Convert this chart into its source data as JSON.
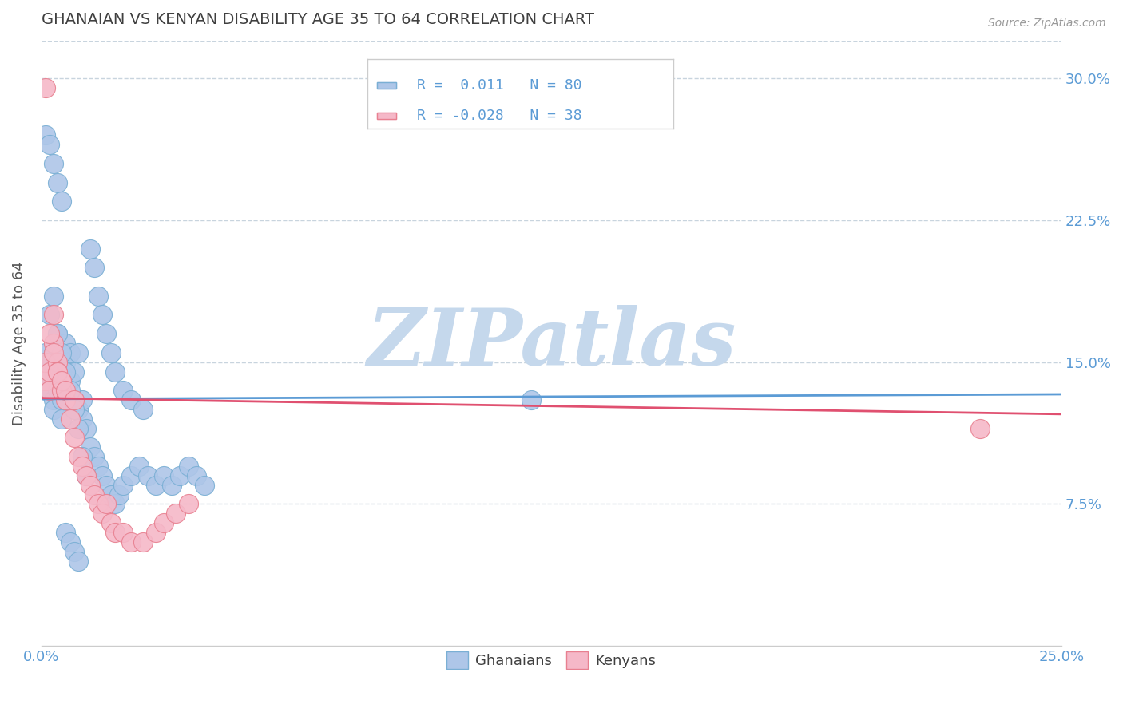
{
  "title": "GHANAIAN VS KENYAN DISABILITY AGE 35 TO 64 CORRELATION CHART",
  "source_text": "Source: ZipAtlas.com",
  "ylabel": "Disability Age 35 to 64",
  "xlim": [
    0.0,
    0.25
  ],
  "ylim": [
    0.0,
    0.32
  ],
  "xticks": [
    0.0,
    0.25
  ],
  "xticklabels": [
    "0.0%",
    "25.0%"
  ],
  "yticks": [
    0.075,
    0.15,
    0.225,
    0.3
  ],
  "yticklabels": [
    "7.5%",
    "15.0%",
    "22.5%",
    "30.0%"
  ],
  "ghanaian_color": "#aec6e8",
  "kenyan_color": "#f5b8c8",
  "ghanaian_edge_color": "#7aafd4",
  "kenyan_edge_color": "#e88090",
  "ghanaian_line_color": "#5b9bd5",
  "kenyan_line_color": "#e05070",
  "R_ghanaian": 0.011,
  "N_ghanaian": 80,
  "R_kenyan": -0.028,
  "N_kenyan": 38,
  "legend_ghanaians": "Ghanaians",
  "legend_kenyans": "Kenyans",
  "watermark": "ZIPatlas",
  "watermark_color": "#c5d8ec",
  "title_color": "#404040",
  "axis_label_color": "#555555",
  "tick_color": "#5b9bd5",
  "grid_color": "#c8d4de",
  "legend_R_color": "#5b9bd5",
  "ghanaian_x": [
    0.001,
    0.001,
    0.001,
    0.001,
    0.001,
    0.002,
    0.002,
    0.002,
    0.002,
    0.003,
    0.003,
    0.003,
    0.003,
    0.004,
    0.004,
    0.004,
    0.005,
    0.005,
    0.005,
    0.006,
    0.006,
    0.006,
    0.007,
    0.007,
    0.008,
    0.008,
    0.009,
    0.009,
    0.01,
    0.01,
    0.011,
    0.012,
    0.013,
    0.014,
    0.015,
    0.016,
    0.017,
    0.018,
    0.019,
    0.02,
    0.022,
    0.024,
    0.026,
    0.028,
    0.03,
    0.032,
    0.034,
    0.036,
    0.038,
    0.04,
    0.002,
    0.003,
    0.004,
    0.005,
    0.006,
    0.007,
    0.008,
    0.009,
    0.01,
    0.011,
    0.012,
    0.013,
    0.014,
    0.015,
    0.016,
    0.017,
    0.018,
    0.02,
    0.022,
    0.025,
    0.001,
    0.002,
    0.003,
    0.004,
    0.005,
    0.006,
    0.007,
    0.008,
    0.009,
    0.12
  ],
  "ghanaian_y": [
    0.14,
    0.15,
    0.135,
    0.145,
    0.155,
    0.14,
    0.135,
    0.145,
    0.15,
    0.13,
    0.145,
    0.155,
    0.125,
    0.135,
    0.15,
    0.165,
    0.13,
    0.145,
    0.12,
    0.135,
    0.15,
    0.16,
    0.14,
    0.155,
    0.13,
    0.145,
    0.125,
    0.155,
    0.13,
    0.12,
    0.115,
    0.105,
    0.1,
    0.095,
    0.09,
    0.085,
    0.08,
    0.075,
    0.08,
    0.085,
    0.09,
    0.095,
    0.09,
    0.085,
    0.09,
    0.085,
    0.09,
    0.095,
    0.09,
    0.085,
    0.175,
    0.185,
    0.165,
    0.155,
    0.145,
    0.135,
    0.125,
    0.115,
    0.1,
    0.09,
    0.21,
    0.2,
    0.185,
    0.175,
    0.165,
    0.155,
    0.145,
    0.135,
    0.13,
    0.125,
    0.27,
    0.265,
    0.255,
    0.245,
    0.235,
    0.06,
    0.055,
    0.05,
    0.045,
    0.13
  ],
  "kenyan_x": [
    0.001,
    0.001,
    0.002,
    0.002,
    0.003,
    0.003,
    0.004,
    0.004,
    0.005,
    0.005,
    0.006,
    0.007,
    0.008,
    0.009,
    0.01,
    0.011,
    0.012,
    0.013,
    0.014,
    0.015,
    0.016,
    0.017,
    0.018,
    0.02,
    0.022,
    0.025,
    0.028,
    0.03,
    0.033,
    0.036,
    0.001,
    0.002,
    0.003,
    0.004,
    0.005,
    0.006,
    0.008,
    0.23
  ],
  "kenyan_y": [
    0.14,
    0.15,
    0.145,
    0.135,
    0.175,
    0.16,
    0.15,
    0.145,
    0.14,
    0.135,
    0.13,
    0.12,
    0.11,
    0.1,
    0.095,
    0.09,
    0.085,
    0.08,
    0.075,
    0.07,
    0.075,
    0.065,
    0.06,
    0.06,
    0.055,
    0.055,
    0.06,
    0.065,
    0.07,
    0.075,
    0.295,
    0.165,
    0.155,
    0.145,
    0.14,
    0.135,
    0.13,
    0.115
  ]
}
